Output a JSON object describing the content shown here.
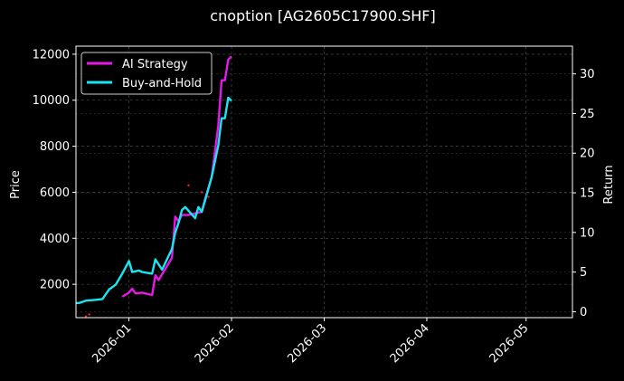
{
  "chart_data": {
    "type": "line",
    "title": "cnoption [AG2605C17900.SHF]",
    "xlabel": "",
    "ylabel": "Price",
    "y2label": "Return",
    "background": "#000000",
    "grid": true,
    "legend_position": "top-left",
    "x_ticks": [
      "2026-01",
      "2026-02",
      "2026-03",
      "2026-04",
      "2026-05"
    ],
    "xlim": [
      "2025-12-16",
      "2026-05-15"
    ],
    "ylim": [
      550,
      12350
    ],
    "y_ticks": [
      2000,
      4000,
      6000,
      8000,
      10000,
      12000
    ],
    "y2lim": [
      -0.75,
      33.5
    ],
    "y2_ticks": [
      0,
      5,
      10,
      15,
      20,
      25,
      30
    ],
    "series": [
      {
        "name": "AI Strategy",
        "axis": "right",
        "color": "#e619e6",
        "points": [
          [
            "2025-12-30",
            1.9
          ],
          [
            "2026-01-01",
            2.4
          ],
          [
            "2026-01-02",
            2.9
          ],
          [
            "2026-01-03",
            2.3
          ],
          [
            "2026-01-05",
            2.4
          ],
          [
            "2026-01-08",
            2.1
          ],
          [
            "2026-01-09",
            4.6
          ],
          [
            "2026-01-10",
            4.0
          ],
          [
            "2026-01-14",
            6.8
          ],
          [
            "2026-01-15",
            12.0
          ],
          [
            "2026-01-16",
            11.4
          ],
          [
            "2026-01-17",
            12.2
          ],
          [
            "2026-01-19",
            12.2
          ],
          [
            "2026-01-20",
            12.3
          ],
          [
            "2026-01-23",
            12.6
          ],
          [
            "2026-01-24",
            14.2
          ],
          [
            "2026-01-26",
            17.0
          ],
          [
            "2026-01-28",
            23.5
          ],
          [
            "2026-01-29",
            29.2
          ],
          [
            "2026-01-30",
            29.2
          ],
          [
            "2026-01-31",
            31.8
          ],
          [
            "2026-02-01",
            32.2
          ]
        ]
      },
      {
        "name": "Buy-and-Hold",
        "axis": "right",
        "color": "#19e6f0",
        "points": [
          [
            "2025-12-16",
            1.1
          ],
          [
            "2025-12-17",
            1.1
          ],
          [
            "2025-12-19",
            1.4
          ],
          [
            "2025-12-22",
            1.5
          ],
          [
            "2025-12-24",
            1.6
          ],
          [
            "2025-12-26",
            2.8
          ],
          [
            "2025-12-28",
            3.4
          ],
          [
            "2025-12-30",
            4.8
          ],
          [
            "2026-01-01",
            6.4
          ],
          [
            "2026-01-02",
            5.0
          ],
          [
            "2026-01-04",
            5.2
          ],
          [
            "2026-01-05",
            5.0
          ],
          [
            "2026-01-08",
            4.8
          ],
          [
            "2026-01-09",
            6.6
          ],
          [
            "2026-01-11",
            5.3
          ],
          [
            "2026-01-14",
            7.9
          ],
          [
            "2026-01-15",
            10.0
          ],
          [
            "2026-01-16",
            11.2
          ],
          [
            "2026-01-17",
            12.8
          ],
          [
            "2026-01-18",
            13.2
          ],
          [
            "2026-01-21",
            11.8
          ],
          [
            "2026-01-22",
            13.2
          ],
          [
            "2026-01-23",
            12.6
          ],
          [
            "2026-01-24",
            14.0
          ],
          [
            "2026-01-26",
            17.0
          ],
          [
            "2026-01-28",
            21.0
          ],
          [
            "2026-01-29",
            24.4
          ],
          [
            "2026-01-30",
            24.4
          ],
          [
            "2026-01-31",
            27.0
          ],
          [
            "2026-02-01",
            26.6
          ]
        ]
      }
    ],
    "markers": {
      "color": "#ff2020",
      "axis": "left",
      "points": [
        [
          "2025-12-19",
          600
        ],
        [
          "2025-12-20",
          690
        ],
        [
          "2026-01-19",
          6300
        ],
        [
          "2026-01-23",
          6000
        ],
        [
          "2026-01-25",
          5800
        ]
      ]
    }
  }
}
